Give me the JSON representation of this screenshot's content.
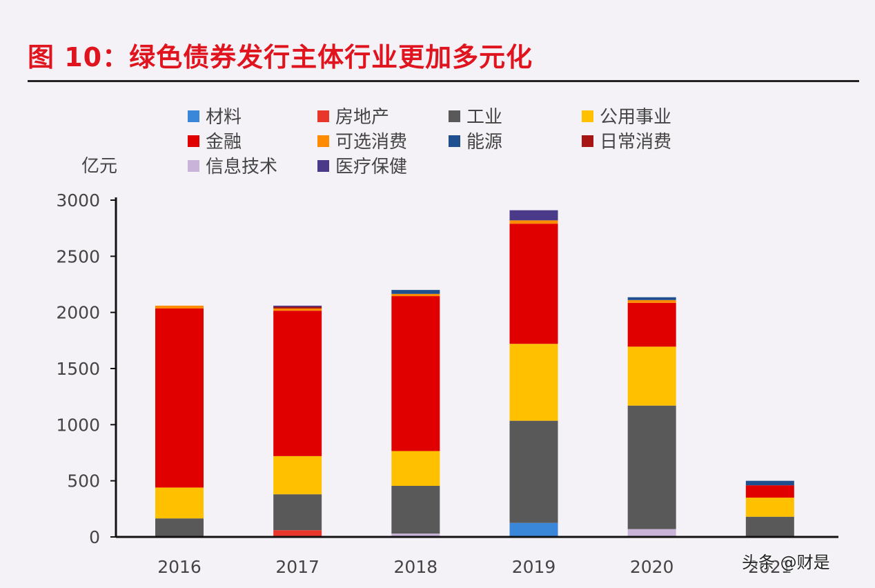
{
  "title": "图 10：绿色债券发行主体行业更加多元化",
  "watermark": "头条 @财是",
  "chart_data": {
    "type": "bar",
    "stacked": true,
    "ylabel": "亿元",
    "ylim": [
      0,
      3000
    ],
    "yticks": [
      0,
      500,
      1000,
      1500,
      2000,
      2500,
      3000
    ],
    "categories": [
      "2016",
      "2017",
      "2018",
      "2019",
      "2020",
      "2021"
    ],
    "grid": false,
    "legend_position": "top",
    "series": [
      {
        "name": "材料",
        "color": "#3a86d9",
        "values": [
          0,
          0,
          0,
          125,
          0,
          0
        ]
      },
      {
        "name": "房地产",
        "color": "#e8362a",
        "values": [
          0,
          60,
          0,
          0,
          0,
          0
        ]
      },
      {
        "name": "信息技术",
        "color": "#c9b3d9",
        "values": [
          0,
          0,
          30,
          0,
          70,
          0
        ]
      },
      {
        "name": "工业",
        "color": "#595959",
        "values": [
          165,
          320,
          425,
          910,
          1100,
          180
        ]
      },
      {
        "name": "公用事业",
        "color": "#ffc000",
        "values": [
          275,
          340,
          310,
          685,
          525,
          170
        ]
      },
      {
        "name": "金融",
        "color": "#e00000",
        "values": [
          1595,
          1295,
          1380,
          1070,
          390,
          110
        ]
      },
      {
        "name": "可选消费",
        "color": "#ff8c00",
        "values": [
          25,
          20,
          20,
          30,
          25,
          0
        ]
      },
      {
        "name": "日常消费",
        "color": "#a71414",
        "values": [
          0,
          15,
          0,
          0,
          0,
          0
        ]
      },
      {
        "name": "医疗保健",
        "color": "#4b3a8a",
        "values": [
          0,
          10,
          0,
          90,
          0,
          0
        ]
      },
      {
        "name": "能源",
        "color": "#1f4f8f",
        "values": [
          0,
          0,
          35,
          0,
          25,
          40
        ]
      }
    ]
  }
}
